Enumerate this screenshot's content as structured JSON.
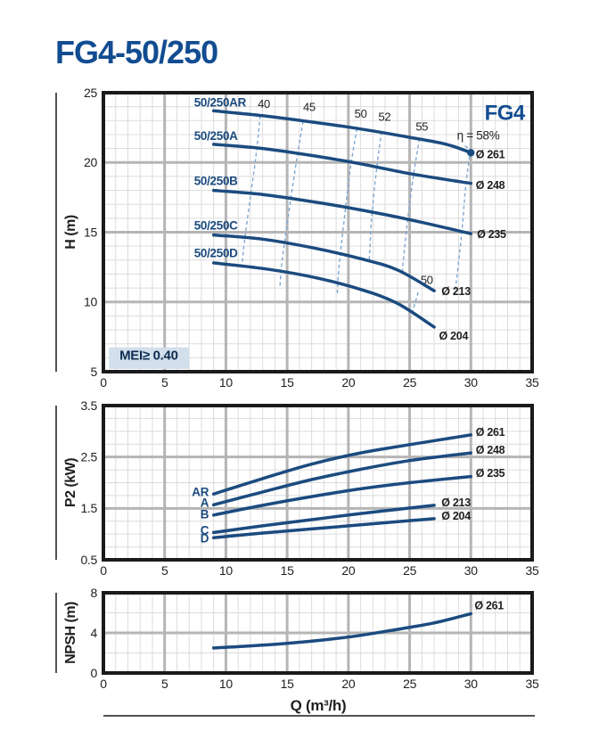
{
  "title": "FG4-50/250",
  "colors": {
    "curve": "#1b4b7f",
    "accent": "#124c91",
    "efficiency": "#7fa8d4",
    "grid_major": "#b5b5b5",
    "grid_minor": "#dcdcdc",
    "border": "#1a1a1a",
    "mei_bg": "#d3dfeb",
    "text": "#1f1f1f"
  },
  "x_axis_label": "Q (m³/h)",
  "chart_data": {
    "type": "line",
    "charts": [
      {
        "name": "head-curves",
        "ylabel": "H (m)",
        "xlim": [
          0,
          35
        ],
        "ylim": [
          5,
          25
        ],
        "x_major": 5,
        "x_minor": 1,
        "y_major": 5,
        "y_minor": 1,
        "x_ticks": [
          0,
          5,
          10,
          15,
          20,
          25,
          30,
          35
        ],
        "y_ticks": [
          5,
          10,
          15,
          20,
          25
        ],
        "series": [
          {
            "name": "50/250AR",
            "label": "50/250AR",
            "label_pos": [
              7.4,
              24.0
            ],
            "label_anchor": "start",
            "dia": "Ø 261",
            "dia_pos": [
              30.4,
              20.3
            ],
            "end_dot": true,
            "points": [
              [
                9,
                23.7
              ],
              [
                13,
                23.35
              ],
              [
                17,
                22.9
              ],
              [
                21,
                22.4
              ],
              [
                25,
                21.8
              ],
              [
                28,
                21.3
              ],
              [
                30,
                20.7
              ]
            ]
          },
          {
            "name": "50/250A",
            "label": "50/250A",
            "label_pos": [
              7.4,
              21.6
            ],
            "label_anchor": "start",
            "dia": "Ø 248",
            "dia_pos": [
              30.4,
              18.1
            ],
            "points": [
              [
                9,
                21.3
              ],
              [
                13,
                21.0
              ],
              [
                17,
                20.5
              ],
              [
                21,
                19.9
              ],
              [
                25,
                19.2
              ],
              [
                30,
                18.5
              ]
            ]
          },
          {
            "name": "50/250B",
            "label": "50/250B",
            "label_pos": [
              7.4,
              18.4
            ],
            "label_anchor": "start",
            "dia": "Ø 235",
            "dia_pos": [
              30.5,
              14.6
            ],
            "points": [
              [
                9,
                18.0
              ],
              [
                13,
                17.7
              ],
              [
                17,
                17.2
              ],
              [
                21,
                16.6
              ],
              [
                25,
                15.9
              ],
              [
                30,
                14.9
              ]
            ]
          },
          {
            "name": "50/250C",
            "label": "50/250C",
            "label_pos": [
              7.4,
              15.2
            ],
            "label_anchor": "start",
            "dia": "Ø 213",
            "dia_pos": [
              27.6,
              10.5
            ],
            "points": [
              [
                9,
                14.8
              ],
              [
                13,
                14.5
              ],
              [
                17,
                13.9
              ],
              [
                21,
                13.1
              ],
              [
                24,
                12.3
              ],
              [
                27,
                10.8
              ]
            ]
          },
          {
            "name": "50/250D",
            "label": "50/250D",
            "label_pos": [
              7.4,
              13.2
            ],
            "label_anchor": "start",
            "dia": "Ø 204",
            "dia_pos": [
              27.4,
              7.3
            ],
            "points": [
              [
                9,
                12.8
              ],
              [
                13,
                12.4
              ],
              [
                17,
                11.8
              ],
              [
                21,
                10.9
              ],
              [
                24,
                9.9
              ],
              [
                27,
                8.2
              ]
            ]
          }
        ],
        "efficiency_lines": [
          {
            "label": "40",
            "label_pos": [
              13.1,
              23.9
            ],
            "points": [
              [
                12.8,
                23.35
              ],
              [
                12.5,
                20.8
              ],
              [
                12.0,
                17.5
              ],
              [
                11.5,
                14.2
              ],
              [
                11.3,
                12.4
              ]
            ]
          },
          {
            "label": "45",
            "label_pos": [
              16.8,
              23.7
            ],
            "points": [
              [
                16.3,
                22.95
              ],
              [
                15.8,
                20.3
              ],
              [
                15.2,
                16.8
              ],
              [
                14.6,
                13.0
              ],
              [
                14.4,
                11.0
              ]
            ]
          },
          {
            "label": "50",
            "label_pos": [
              21.0,
              23.2
            ],
            "points": [
              [
                20.7,
                22.43
              ],
              [
                20.2,
                19.8
              ],
              [
                19.7,
                16.2
              ],
              [
                19.2,
                12.2
              ],
              [
                19.1,
                10.6
              ]
            ]
          },
          {
            "label": "52",
            "label_pos": [
              22.95,
              23.0
            ],
            "points": [
              [
                22.7,
                22.2
              ],
              [
                22.3,
                19.5
              ],
              [
                21.9,
                16.0
              ],
              [
                21.7,
                12.9
              ]
            ]
          },
          {
            "label": "55",
            "label_pos": [
              26.0,
              22.3
            ],
            "points": [
              [
                25.8,
                21.7
              ],
              [
                25.3,
                19.0
              ],
              [
                24.8,
                15.6
              ],
              [
                24.4,
                12.2
              ]
            ]
          },
          {
            "label": "",
            "label_pos": [
              30.6,
              21.65
            ],
            "points": [
              [
                29.5,
                21.2
              ],
              [
                29.9,
                20.7
              ],
              [
                29.6,
                18.5
              ],
              [
                29.2,
                14.5
              ],
              [
                28.7,
                10.6
              ]
            ]
          },
          {
            "label": "50",
            "label_pos": [
              26.4,
              11.3
            ],
            "points": [
              [
                25.7,
                10.7
              ],
              [
                25.1,
                8.9
              ]
            ]
          }
        ],
        "annotations": [
          {
            "text": "FG4",
            "pos": [
              34.4,
              23.05
            ],
            "anchor": "end",
            "cls": "badge"
          },
          {
            "text": "η = 58%",
            "pos": [
              30.6,
              21.65
            ],
            "anchor": "middle",
            "cls": "eta"
          },
          {
            "text": "MEI≥ 0.40",
            "pos": [
              3.7,
              5.85
            ],
            "anchor": "middle",
            "cls": "meitext",
            "box": [
              0.45,
              5.2,
              7.0,
              6.75
            ],
            "box_fill": "mei_bg"
          }
        ]
      },
      {
        "name": "power-curves",
        "ylabel": "P2 (kW)",
        "xlim": [
          0,
          35
        ],
        "ylim": [
          0.5,
          3.5
        ],
        "x_major": 5,
        "x_minor": 1,
        "y_major": 1,
        "y_minor": 0.25,
        "x_ticks": [
          0,
          5,
          10,
          15,
          20,
          25,
          30,
          35
        ],
        "y_ticks": [
          0.5,
          1.5,
          2.5,
          3.5
        ],
        "series": [
          {
            "name": "AR",
            "label": "AR",
            "label_pos": [
              8.6,
              1.74
            ],
            "label_anchor": "end",
            "dia": "Ø 261",
            "dia_pos": [
              30.4,
              2.91
            ],
            "points": [
              [
                9,
                1.78
              ],
              [
                13,
                2.08
              ],
              [
                17,
                2.36
              ],
              [
                21,
                2.58
              ],
              [
                25,
                2.74
              ],
              [
                30,
                2.93
              ]
            ]
          },
          {
            "name": "A",
            "label": "A",
            "label_pos": [
              8.6,
              1.53
            ],
            "label_anchor": "end",
            "dia": "Ø 248",
            "dia_pos": [
              30.4,
              2.56
            ],
            "points": [
              [
                9,
                1.57
              ],
              [
                13,
                1.82
              ],
              [
                17,
                2.06
              ],
              [
                21,
                2.26
              ],
              [
                25,
                2.43
              ],
              [
                30,
                2.58
              ]
            ]
          },
          {
            "name": "B",
            "label": "B",
            "label_pos": [
              8.6,
              1.31
            ],
            "label_anchor": "end",
            "dia": "Ø 235",
            "dia_pos": [
              30.4,
              2.11
            ],
            "points": [
              [
                9,
                1.37
              ],
              [
                13,
                1.56
              ],
              [
                17,
                1.73
              ],
              [
                21,
                1.88
              ],
              [
                25,
                2.0
              ],
              [
                30,
                2.12
              ]
            ]
          },
          {
            "name": "C",
            "label": "C",
            "label_pos": [
              8.6,
              0.99
            ],
            "label_anchor": "end",
            "dia": "Ø 213",
            "dia_pos": [
              27.6,
              1.54
            ],
            "points": [
              [
                9,
                1.03
              ],
              [
                13,
                1.16
              ],
              [
                17,
                1.28
              ],
              [
                21,
                1.4
              ],
              [
                24,
                1.48
              ],
              [
                27,
                1.56
              ]
            ]
          },
          {
            "name": "D",
            "label": "D",
            "label_pos": [
              8.6,
              0.84
            ],
            "label_anchor": "end",
            "dia": "Ø 204",
            "dia_pos": [
              27.6,
              1.28
            ],
            "points": [
              [
                9,
                0.93
              ],
              [
                13,
                1.02
              ],
              [
                17,
                1.1
              ],
              [
                21,
                1.18
              ],
              [
                24,
                1.24
              ],
              [
                27,
                1.3
              ]
            ]
          }
        ],
        "efficiency_lines": [],
        "annotations": []
      },
      {
        "name": "npsh-curve",
        "ylabel": "NPSH (m)",
        "xlim": [
          0,
          35
        ],
        "ylim": [
          0,
          8
        ],
        "x_major": 5,
        "x_minor": 1,
        "y_major": 4,
        "y_minor": 2,
        "x_ticks": [
          0,
          5,
          10,
          15,
          20,
          25,
          30,
          35
        ],
        "y_ticks": [
          0,
          4,
          8
        ],
        "series": [
          {
            "name": "NPSH Ø 261",
            "label": "",
            "label_pos": [
              0,
              0
            ],
            "label_anchor": "start",
            "dia": "Ø 261",
            "dia_pos": [
              30.3,
              6.35
            ],
            "points": [
              [
                9,
                2.5
              ],
              [
                12,
                2.7
              ],
              [
                15,
                2.95
              ],
              [
                18,
                3.3
              ],
              [
                21,
                3.75
              ],
              [
                24,
                4.35
              ],
              [
                27,
                5.0
              ],
              [
                30,
                5.9
              ]
            ]
          }
        ],
        "efficiency_lines": [],
        "annotations": []
      }
    ]
  }
}
